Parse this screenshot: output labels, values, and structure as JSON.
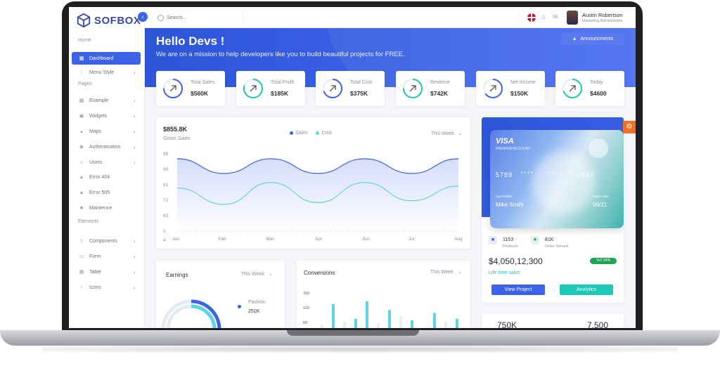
{
  "brand": {
    "name": "SOFBOX"
  },
  "search": {
    "placeholder": "Search..."
  },
  "user": {
    "name": "Austin Robertson",
    "role": "Marketing Administrator"
  },
  "sidebar": {
    "sections": {
      "home": "Home",
      "pages": "Pages",
      "elements": "Elements"
    },
    "items": [
      {
        "label": "Dashboard",
        "icon": "grid-icon",
        "chevron": false
      },
      {
        "label": "Menu Style",
        "icon": "menu-style-icon",
        "chevron": true
      },
      {
        "label": "Example",
        "icon": "page-icon",
        "chevron": true
      },
      {
        "label": "Widgets",
        "icon": "widget-icon",
        "chevron": true
      },
      {
        "label": "Maps",
        "icon": "map-icon",
        "chevron": true
      },
      {
        "label": "Authentication",
        "icon": "lock-icon",
        "chevron": true
      },
      {
        "label": "Users",
        "icon": "users-icon",
        "chevron": true
      },
      {
        "label": "Error 404",
        "icon": "warning-icon",
        "chevron": false
      },
      {
        "label": "Error 505",
        "icon": "warning-icon",
        "chevron": false
      },
      {
        "label": "Maintence",
        "icon": "tool-icon",
        "chevron": false
      },
      {
        "label": "Components",
        "icon": "component-icon",
        "chevron": true
      },
      {
        "label": "Form",
        "icon": "form-icon",
        "chevron": true
      },
      {
        "label": "Table",
        "icon": "table-icon",
        "chevron": true
      },
      {
        "label": "Icons",
        "icon": "info-icon",
        "chevron": true
      }
    ]
  },
  "hero": {
    "title": "Hello Devs !",
    "subtitle": "We are on a mission to help developers like you to build beautiful projects for FREE.",
    "announcement_label": "Announcments"
  },
  "stats": [
    {
      "label": "Total Sales",
      "value": "$560K",
      "color": "#3d63e8",
      "progress": 0.75
    },
    {
      "label": "Total Profit",
      "value": "$185K",
      "color": "#1fc7b6",
      "progress": 0.8
    },
    {
      "label": "Total Cost",
      "value": "$375K",
      "color": "#3d63e8",
      "progress": 0.7
    },
    {
      "label": "Revenue",
      "value": "$742K",
      "color": "#1fc7b6",
      "progress": 0.75
    },
    {
      "label": "Net Income",
      "value": "$150K",
      "color": "#3d63e8",
      "progress": 0.65
    },
    {
      "label": "Today",
      "value": "$4600",
      "color": "#1fc7b6",
      "progress": 0.7
    }
  ],
  "gross": {
    "amount": "$855.8K",
    "label": "Gross Sales",
    "dropdown": "This Week",
    "legend": [
      {
        "name": "Sales",
        "color": "#3d63e8"
      },
      {
        "name": "Cost",
        "color": "#5fd3e8"
      }
    ]
  },
  "chart_data": [
    {
      "type": "area",
      "ylim": [
        4,
        99
      ],
      "y_ticks": [
        99,
        90,
        81,
        72,
        63,
        5,
        4
      ],
      "x_ticks": [
        "Jan",
        "Feb",
        "Mar",
        "Apr",
        "Jun",
        "Jul",
        "Aug"
      ],
      "series": [
        {
          "name": "Sales",
          "color": "#3d63e8",
          "values": [
            95,
            88,
            95,
            88,
            95,
            88,
            95
          ]
        },
        {
          "name": "Cost",
          "color": "#5fd3e8",
          "values": [
            79,
            70,
            82,
            71,
            82,
            72,
            80
          ]
        }
      ]
    },
    {
      "type": "bar",
      "y_ticks": [
        160,
        120,
        60
      ],
      "values": [
        40,
        110,
        50,
        60,
        120,
        45,
        90,
        70,
        55,
        30,
        80,
        50,
        60
      ],
      "colors": [
        "#dff3f9",
        "#5fd3e8",
        "#dff3f9",
        "#5fd3e8",
        "#5fd3e8",
        "#dff3f9",
        "#5fd3e8",
        "#dff3f9",
        "#5fd3e8",
        "#dff3f9",
        "#5fd3e8",
        "#dff3f9",
        "#5fd3e8"
      ]
    }
  ],
  "card": {
    "brand": "VISA",
    "type": "PREMIUM ACCOUNT",
    "num1": "5789",
    "mask1": "* * * *",
    "mask2": "* * * *",
    "num4": "2847",
    "holder_label": "Card holder",
    "holder": "Mike Smith",
    "expire_label": "Expire date",
    "expire": "06/21"
  },
  "card_stats": {
    "products_value": "1153",
    "products_label": "Products",
    "order_value": "81K",
    "order_label": "Order Served",
    "lifetime_amount": "$4,050,12,300",
    "yoy_badge": "YoY 24%",
    "lifetime_label": "Life time sales",
    "view_button": "View Project",
    "analytics_button": "Analytics"
  },
  "earnings": {
    "title": "Earnings",
    "dropdown": "This Week",
    "legend_label": "Fashion",
    "legend_value": "251K",
    "progress": 0.72
  },
  "conversions": {
    "title": "Conversions",
    "dropdown": "This Week"
  },
  "bottom_right": {
    "left_value": "750K",
    "right_value": "7,500"
  }
}
